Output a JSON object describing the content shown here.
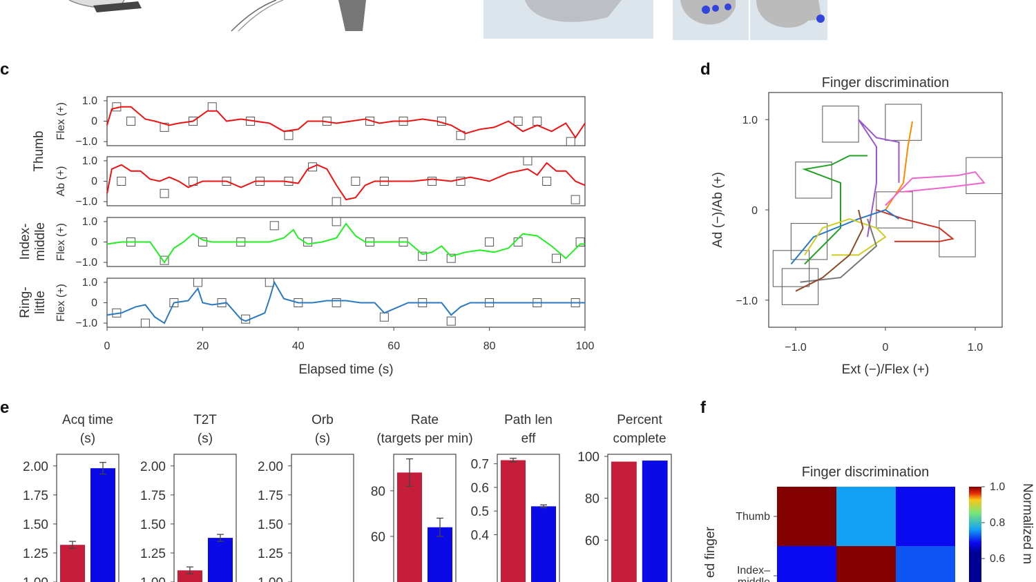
{
  "panels": {
    "c": "c",
    "d": "d",
    "e": "e",
    "f": "f"
  },
  "colors": {
    "thumb": "#ee1111",
    "index_middle": "#22ee22",
    "ring_little": "#2a78c0",
    "red_bar": "#c41e3a",
    "blue_bar": "#0a0ae6"
  },
  "chart_data": [
    {
      "type": "line",
      "panel": "c",
      "xlabel": "Elapsed time (s)",
      "xlim": [
        0,
        100
      ],
      "xticks": [
        "0",
        "20",
        "40",
        "60",
        "80",
        "100"
      ],
      "yticks": [
        "1.0",
        "0",
        "-1.0"
      ],
      "ylim": [
        -1.2,
        1.2
      ],
      "group_labels": [
        "Thumb",
        "Index-\nmiddle",
        "Ring-\nlittle"
      ],
      "series": [
        {
          "name": "Flex (+)",
          "group": "Thumb",
          "color": "#ee1111",
          "x": [
            0,
            1,
            3,
            5,
            8,
            10,
            13,
            15,
            18,
            21,
            23,
            25,
            28,
            31,
            34,
            37,
            40,
            42,
            45,
            48,
            51,
            54,
            57,
            60,
            63,
            66,
            69,
            72,
            75,
            78,
            81,
            84,
            87,
            90,
            93,
            96,
            98,
            100
          ],
          "y": [
            -0.2,
            0.6,
            0.7,
            0.7,
            0.1,
            0.0,
            -0.2,
            -0.1,
            0.0,
            0.5,
            0.5,
            0.0,
            0.1,
            0.0,
            -0.1,
            -0.5,
            -0.4,
            0.0,
            0.0,
            -0.1,
            0.0,
            0.1,
            -0.1,
            0.0,
            0.0,
            0.1,
            0.0,
            -0.2,
            -0.6,
            -0.4,
            -0.3,
            0.0,
            -0.5,
            -0.2,
            -0.5,
            -0.1,
            -0.8,
            -0.1
          ],
          "targets": [
            [
              2,
              0.7
            ],
            [
              5,
              0.0
            ],
            [
              12,
              -0.3
            ],
            [
              18,
              0.0
            ],
            [
              22,
              0.7
            ],
            [
              30,
              0.0
            ],
            [
              38,
              -0.7
            ],
            [
              46,
              0.0
            ],
            [
              55,
              0.0
            ],
            [
              62,
              0.0
            ],
            [
              70,
              0.0
            ],
            [
              74,
              -0.7
            ],
            [
              86,
              0.0
            ],
            [
              90,
              0.0
            ],
            [
              97,
              -1.0
            ]
          ]
        },
        {
          "name": "Ab (+)",
          "group": "Thumb",
          "color": "#ee1111",
          "x": [
            0,
            1,
            3,
            5,
            7,
            9,
            11,
            13,
            15,
            17,
            20,
            23,
            25,
            28,
            31,
            34,
            37,
            40,
            42,
            44,
            46,
            48,
            50,
            52,
            54,
            56,
            60,
            64,
            68,
            72,
            76,
            80,
            84,
            88,
            90,
            92,
            94,
            96,
            98,
            100
          ],
          "y": [
            -0.6,
            0.6,
            0.8,
            0.5,
            0.5,
            0.1,
            0.0,
            0.2,
            0.0,
            -0.3,
            0.0,
            0.0,
            0.0,
            -0.3,
            0.0,
            0.0,
            0.0,
            -0.1,
            0.6,
            0.8,
            0.6,
            -0.2,
            -0.9,
            -0.8,
            -0.2,
            0.0,
            0.0,
            0.0,
            0.1,
            0.0,
            0.2,
            0.0,
            0.4,
            0.6,
            0.3,
            0.9,
            0.5,
            0.5,
            0.0,
            -0.2
          ],
          "targets": [
            [
              3,
              0.0
            ],
            [
              12,
              -0.6
            ],
            [
              18,
              0.0
            ],
            [
              25,
              0.0
            ],
            [
              32,
              0.0
            ],
            [
              38,
              0.0
            ],
            [
              43,
              0.7
            ],
            [
              48,
              -1.0
            ],
            [
              52,
              0.0
            ],
            [
              58,
              0.0
            ],
            [
              68,
              0.0
            ],
            [
              74,
              0.0
            ],
            [
              88,
              1.0
            ],
            [
              92,
              0.0
            ],
            [
              98,
              -0.9
            ]
          ]
        },
        {
          "name": "Flex (+)",
          "group": "Index-middle",
          "color": "#22ee22",
          "x": [
            0,
            3,
            6,
            9,
            12,
            14,
            16,
            18,
            20,
            22,
            25,
            28,
            31,
            34,
            37,
            39,
            40,
            42,
            45,
            48,
            50,
            52,
            54,
            57,
            60,
            63,
            66,
            68,
            70,
            72,
            75,
            78,
            81,
            84,
            87,
            90,
            93,
            96,
            99,
            100
          ],
          "y": [
            -0.1,
            0.0,
            0.0,
            0.0,
            -1.0,
            -0.3,
            0.0,
            0.4,
            0.1,
            0.0,
            0.0,
            0.0,
            0.0,
            0.0,
            0.2,
            0.6,
            0.2,
            -0.1,
            0.0,
            0.2,
            0.9,
            0.3,
            0.0,
            0.0,
            0.0,
            0.0,
            -0.6,
            -0.5,
            -0.2,
            -0.7,
            -0.5,
            -0.4,
            -0.5,
            -0.3,
            0.4,
            0.3,
            -0.2,
            -0.8,
            -0.1,
            -0.1
          ],
          "targets": [
            [
              5,
              0.0
            ],
            [
              12,
              -0.9
            ],
            [
              20,
              0.0
            ],
            [
              28,
              0.0
            ],
            [
              35,
              0.8
            ],
            [
              42,
              0.0
            ],
            [
              48,
              1.0
            ],
            [
              55,
              0.0
            ],
            [
              62,
              0.0
            ],
            [
              66,
              -0.7
            ],
            [
              72,
              -0.8
            ],
            [
              80,
              0.0
            ],
            [
              86,
              0.0
            ],
            [
              94,
              -0.8
            ],
            [
              99,
              0.0
            ]
          ]
        },
        {
          "name": "Flex (+)",
          "group": "Ring-little",
          "color": "#2a78c0",
          "x": [
            0,
            3,
            6,
            8,
            10,
            12,
            14,
            17,
            19,
            20,
            22,
            25,
            28,
            29,
            31,
            33,
            34,
            35,
            37,
            40,
            43,
            46,
            50,
            53,
            56,
            58,
            60,
            63,
            66,
            70,
            72,
            74,
            76,
            80,
            84,
            88,
            92,
            96,
            100
          ],
          "y": [
            -0.6,
            -0.5,
            -0.2,
            -0.1,
            -0.7,
            -1.0,
            0.0,
            0.1,
            0.7,
            0.0,
            -0.1,
            0.0,
            -0.8,
            -0.9,
            -0.7,
            -0.5,
            0.2,
            1.0,
            0.2,
            0.0,
            0.0,
            0.1,
            0.1,
            0.0,
            0.0,
            -0.5,
            -0.3,
            0.0,
            0.0,
            0.0,
            -0.6,
            -0.2,
            0.0,
            0.0,
            0.0,
            0.0,
            0.0,
            0.0,
            0.0
          ],
          "targets": [
            [
              2,
              -0.5
            ],
            [
              8,
              -1.0
            ],
            [
              14,
              0.0
            ],
            [
              19,
              1.0
            ],
            [
              24,
              0.0
            ],
            [
              29,
              -0.8
            ],
            [
              34,
              1.0
            ],
            [
              40,
              0.0
            ],
            [
              48,
              0.0
            ],
            [
              58,
              -0.7
            ],
            [
              66,
              0.0
            ],
            [
              72,
              -0.9
            ],
            [
              80,
              0.0
            ],
            [
              90,
              0.0
            ],
            [
              98,
              0.0
            ]
          ]
        }
      ]
    },
    {
      "type": "line",
      "panel": "d",
      "title": "Finger discrimination",
      "xlabel": "Ext (-)/Flex (+)",
      "ylabel": "Ad (-)/Ab (+)",
      "xlim": [
        -1.3,
        1.3
      ],
      "ylim": [
        -1.3,
        1.3
      ],
      "xticks": [
        "-1.0",
        "0",
        "1.0"
      ],
      "yticks": [
        "1.0",
        "0",
        "-1.0"
      ],
      "target_boxes": [
        [
          -0.5,
          0.95
        ],
        [
          0.2,
          0.97
        ],
        [
          -0.8,
          0.33
        ],
        [
          1.1,
          0.38
        ],
        [
          0.1,
          0.0
        ],
        [
          -0.85,
          -0.35
        ],
        [
          -1.05,
          -0.65
        ],
        [
          -0.95,
          -0.85
        ],
        [
          0.8,
          -0.32
        ]
      ],
      "series": [
        {
          "color": "#9955cc",
          "points": [
            [
              -0.2,
              -0.3
            ],
            [
              -0.1,
              0.3
            ],
            [
              -0.1,
              0.7
            ],
            [
              -0.3,
              1.0
            ],
            [
              -0.1,
              0.8
            ],
            [
              0.15,
              0.75
            ],
            [
              0.15,
              0.3
            ]
          ]
        },
        {
          "color": "#ff8800",
          "points": [
            [
              0.0,
              0.0
            ],
            [
              0.2,
              0.3
            ],
            [
              0.25,
              0.7
            ],
            [
              0.3,
              0.98
            ]
          ]
        },
        {
          "color": "#22a022",
          "points": [
            [
              -0.9,
              -0.6
            ],
            [
              -0.5,
              -0.2
            ],
            [
              -0.5,
              0.3
            ],
            [
              -0.9,
              0.45
            ],
            [
              -0.6,
              0.5
            ],
            [
              -0.4,
              0.6
            ],
            [
              -0.2,
              0.6
            ]
          ]
        },
        {
          "color": "#ee66cc",
          "points": [
            [
              0.0,
              0.05
            ],
            [
              0.3,
              0.35
            ],
            [
              0.8,
              0.38
            ],
            [
              1.0,
              0.42
            ],
            [
              1.1,
              0.3
            ],
            [
              0.7,
              0.25
            ],
            [
              0.2,
              0.2
            ]
          ]
        },
        {
          "color": "#cc3322",
          "points": [
            [
              -0.1,
              0.0
            ],
            [
              0.2,
              -0.1
            ],
            [
              0.6,
              -0.2
            ],
            [
              0.75,
              -0.32
            ],
            [
              0.6,
              -0.35
            ],
            [
              0.1,
              -0.35
            ]
          ]
        },
        {
          "color": "#2a78c0",
          "points": [
            [
              -1.05,
              -0.6
            ],
            [
              -0.8,
              -0.3
            ],
            [
              -0.3,
              -0.1
            ],
            [
              0.0,
              0.0
            ],
            [
              0.15,
              -0.1
            ]
          ]
        },
        {
          "color": "#cccc22",
          "points": [
            [
              -0.9,
              -0.5
            ],
            [
              -0.7,
              -0.2
            ],
            [
              -0.4,
              -0.1
            ],
            [
              -0.1,
              -0.2
            ],
            [
              0.0,
              -0.3
            ],
            [
              -0.3,
              -0.5
            ],
            [
              -0.6,
              -0.5
            ]
          ]
        },
        {
          "color": "#777777",
          "points": [
            [
              -0.2,
              -0.1
            ],
            [
              -0.1,
              -0.4
            ],
            [
              -0.5,
              -0.75
            ],
            [
              -0.95,
              -0.8
            ]
          ]
        },
        {
          "color": "#8b4a2a",
          "points": [
            [
              -1.0,
              -0.9
            ],
            [
              -0.7,
              -0.75
            ],
            [
              -0.4,
              -0.5
            ],
            [
              -0.25,
              -0.2
            ],
            [
              -0.3,
              0.0
            ]
          ]
        }
      ]
    },
    {
      "type": "bar",
      "panel": "e",
      "subplots": [
        {
          "title": [
            "Acq time",
            "(s)"
          ],
          "ylim": [
            1.0,
            2.1
          ],
          "yticks": [
            "1.00",
            "1.25",
            "1.50",
            "1.75",
            "2.00"
          ],
          "values": [
            1.32,
            1.98
          ],
          "errors": [
            0.03,
            0.05
          ]
        },
        {
          "title": [
            "T2T",
            "(s)"
          ],
          "ylim": [
            1.0,
            2.1
          ],
          "yticks": [
            "1.00",
            "1.25",
            "1.50",
            "1.75",
            "2.00"
          ],
          "values": [
            1.1,
            1.38
          ],
          "errors": [
            0.03,
            0.03
          ]
        },
        {
          "title": [
            "Orb",
            "(s)"
          ],
          "ylim": [
            1.0,
            2.1
          ],
          "yticks": [
            "1.00",
            "1.25",
            "1.50",
            "1.75",
            "2.00"
          ],
          "values": [],
          "errors": []
        },
        {
          "title": [
            "Rate",
            "(targets per min)"
          ],
          "ylim": [
            40,
            96
          ],
          "yticks": [
            "60",
            "80"
          ],
          "values": [
            88,
            64
          ],
          "errors": [
            6,
            4
          ]
        },
        {
          "title": [
            "Path len",
            "eff"
          ],
          "ylim": [
            0.2,
            0.74
          ],
          "yticks": [
            "0.4",
            "0.5",
            "0.6",
            "0.7"
          ],
          "values": [
            0.715,
            0.52
          ],
          "errors": [
            0.008,
            0.006
          ]
        },
        {
          "title": [
            "Percent",
            "complete"
          ],
          "ylim": [
            40,
            101
          ],
          "yticks": [
            "60",
            "80",
            "100"
          ],
          "values": [
            97.5,
            98
          ],
          "errors": [
            0,
            0
          ]
        }
      ]
    },
    {
      "type": "heatmap",
      "panel": "f",
      "title": "Finger discrimination",
      "ylabel": "ed finger",
      "colorbar_label": "Normalized m",
      "colorbar_ticks": [
        "1.0",
        "0.8",
        "0.6"
      ],
      "row_labels": [
        "Thumb",
        "Index-\nmiddle"
      ],
      "values": [
        [
          1.0,
          0.35,
          0.15
        ],
        [
          0.15,
          1.0,
          0.25
        ]
      ]
    }
  ]
}
